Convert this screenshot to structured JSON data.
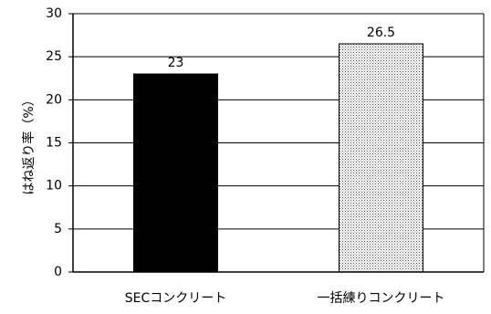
{
  "chart_data": {
    "type": "bar",
    "categories": [
      "SECコンクリート",
      "一括練りコンクリート"
    ],
    "values": [
      23,
      26.5
    ],
    "data_labels": [
      "23",
      "26.5"
    ],
    "title": "",
    "xlabel": "",
    "ylabel": "はね返り率（%）",
    "ylim": [
      0,
      30
    ],
    "yticks": [
      0,
      5,
      10,
      15,
      20,
      25,
      30
    ],
    "grid": "horizontal",
    "legend": "none",
    "bar_styles": [
      {
        "fill": "#000000",
        "pattern": "solid"
      },
      {
        "fill": "#ffffff",
        "pattern": "dotted"
      }
    ]
  }
}
